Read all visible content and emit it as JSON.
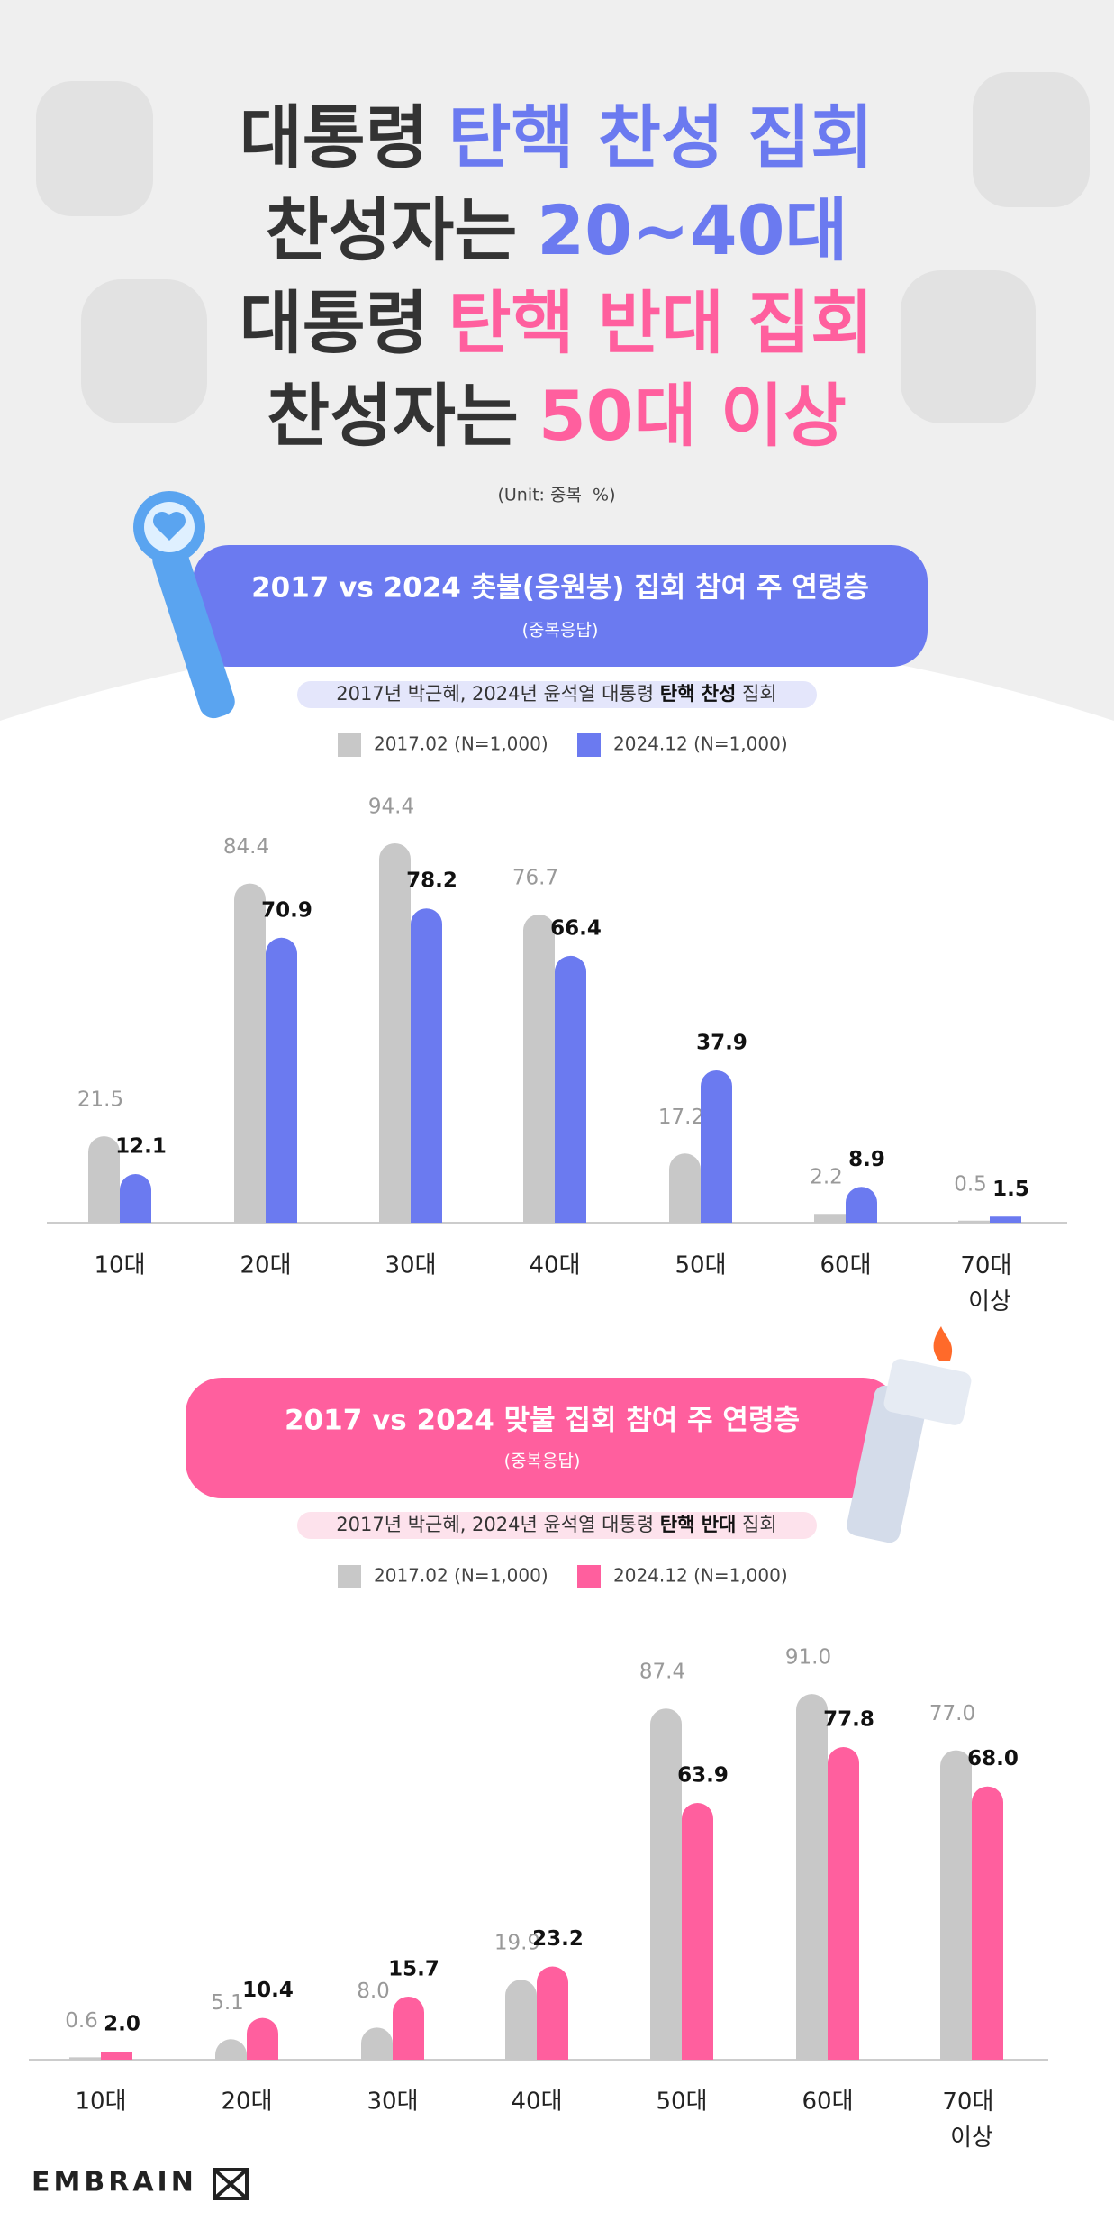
{
  "header": {
    "lines": [
      {
        "text": "대통령",
        "highlight": "탄핵 찬성 집회",
        "color": "#6b7af0"
      },
      {
        "text": "찬성자는",
        "highlight": "20~40대",
        "color": "#6b7af0"
      },
      {
        "text": "대통령",
        "highlight": "탄핵 반대 집회",
        "color": "#ff5f9e"
      },
      {
        "text": "찬성자는",
        "highlight": "50대 이상",
        "color": "#ff5f9e"
      }
    ],
    "unit": "(Unit: 중복  %)"
  },
  "chart_data": [
    {
      "type": "bar",
      "title": "2017 vs 2024 촛불(응원봉) 집회 참여 주 연령층",
      "subtitle": "(중복응답)",
      "note": {
        "prefix": "2017년 박근혜, 2024년 윤석열 대통령 ",
        "bold": "탄핵 찬성",
        "suffix": " 집회"
      },
      "panel_color": "#6b7af0",
      "note_color": "#e4e6fb",
      "categories": [
        "10대",
        "20대",
        "30대",
        "40대",
        "50대",
        "60대",
        "70대 이상"
      ],
      "series": [
        {
          "name": "2017.02 (N=1,000)",
          "color": "#c8c8c8",
          "values": [
            21.5,
            84.4,
            94.4,
            76.7,
            17.2,
            2.2,
            0.5
          ],
          "value_labels": [
            "21.5",
            "84.4",
            "94.4",
            "76.7",
            "17.2",
            "2.2",
            "0.5"
          ]
        },
        {
          "name": "2024.12 (N=1,000)",
          "color": "#6b7af0",
          "values": [
            12.1,
            70.9,
            78.2,
            66.4,
            37.9,
            8.9,
            1.5
          ],
          "value_labels": [
            "12.1",
            "70.9",
            "78.2",
            "66.4",
            "37.9",
            "8.9",
            "1.5"
          ]
        }
      ],
      "ylim": [
        0,
        100
      ]
    },
    {
      "type": "bar",
      "title": "2017 vs 2024 맞불 집회 참여 주 연령층",
      "subtitle": "(중복응답)",
      "note": {
        "prefix": "2017년 박근혜, 2024년 윤석열 대통령 ",
        "bold": "탄핵 반대",
        "suffix": " 집회"
      },
      "panel_color": "#ff5f9e",
      "note_color": "#fde2ec",
      "categories": [
        "10대",
        "20대",
        "30대",
        "40대",
        "50대",
        "60대",
        "70대 이상"
      ],
      "series": [
        {
          "name": "2017.02 (N=1,000)",
          "color": "#c8c8c8",
          "values": [
            0.6,
            5.1,
            8.0,
            19.9,
            87.4,
            91.0,
            77.0
          ],
          "value_labels": [
            "0.6",
            "5.1",
            "8.0",
            "19.9",
            "87.4",
            "91.0",
            "77.0"
          ]
        },
        {
          "name": "2024.12 (N=1,000)",
          "color": "#ff5f9e",
          "values": [
            2.0,
            10.4,
            15.7,
            23.2,
            63.9,
            77.8,
            68.0
          ],
          "value_labels": [
            "2.0",
            "10.4",
            "15.7",
            "23.2",
            "63.9",
            "77.8",
            "68.0"
          ]
        }
      ],
      "ylim": [
        0,
        100
      ]
    }
  ],
  "footer": {
    "logo": "EMBRAIN"
  }
}
